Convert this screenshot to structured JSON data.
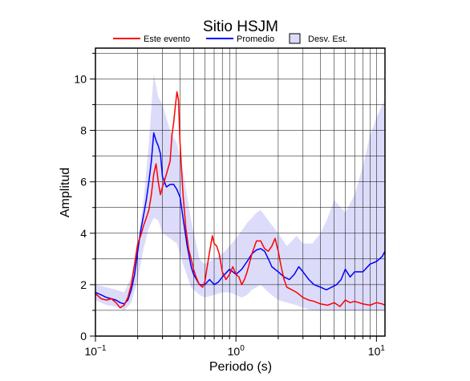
{
  "chart_data": {
    "type": "line",
    "title": "Sitio HSJM",
    "xlabel": "Periodo (s)",
    "ylabel": "Amplitud",
    "x_scale": "log",
    "xlim": [
      0.1,
      11.5
    ],
    "ylim": [
      0,
      11.2
    ],
    "y_ticks": [
      0,
      2,
      4,
      6,
      8,
      10
    ],
    "x_major_ticks": [
      {
        "value": 0.1,
        "base": "10",
        "exp": "−1"
      },
      {
        "value": 1,
        "base": "10",
        "exp": "0"
      },
      {
        "value": 10,
        "base": "10",
        "exp": "1"
      }
    ],
    "grid": true,
    "legend_position": "top",
    "legend": [
      {
        "label": "Este evento",
        "type": "line",
        "color": "#ff0000"
      },
      {
        "label": "Promedio",
        "type": "line",
        "color": "#0000ff"
      },
      {
        "label": "Desv. Est.",
        "type": "box",
        "color": "#dcdcfa"
      }
    ],
    "series": [
      {
        "name": "Este evento",
        "color": "#ff0000",
        "x": [
          0.1,
          0.11,
          0.12,
          0.13,
          0.14,
          0.15,
          0.16,
          0.17,
          0.18,
          0.19,
          0.2,
          0.21,
          0.22,
          0.23,
          0.24,
          0.25,
          0.26,
          0.27,
          0.28,
          0.29,
          0.3,
          0.32,
          0.34,
          0.35,
          0.36,
          0.37,
          0.38,
          0.39,
          0.4,
          0.42,
          0.44,
          0.46,
          0.48,
          0.5,
          0.52,
          0.55,
          0.58,
          0.6,
          0.62,
          0.65,
          0.68,
          0.7,
          0.73,
          0.76,
          0.8,
          0.85,
          0.9,
          0.95,
          1.0,
          1.05,
          1.1,
          1.15,
          1.2,
          1.3,
          1.4,
          1.5,
          1.6,
          1.7,
          1.8,
          1.9,
          2.0,
          2.1,
          2.2,
          2.3,
          2.5,
          2.7,
          3.0,
          3.3,
          3.6,
          4.0,
          4.5,
          5.0,
          5.5,
          6.0,
          6.5,
          7.0,
          8.0,
          9.0,
          10.0,
          11.0,
          11.5
        ],
        "y": [
          1.65,
          1.45,
          1.4,
          1.45,
          1.3,
          1.1,
          1.2,
          1.5,
          2.0,
          2.8,
          3.6,
          3.9,
          4.3,
          4.6,
          4.9,
          5.5,
          6.3,
          6.7,
          6.0,
          5.5,
          5.8,
          6.3,
          6.8,
          7.8,
          8.3,
          8.9,
          9.5,
          9.2,
          7.5,
          5.5,
          4.2,
          3.4,
          3.0,
          2.6,
          2.3,
          2.0,
          1.9,
          2.1,
          2.6,
          3.3,
          3.9,
          3.6,
          3.5,
          3.2,
          2.5,
          2.2,
          2.4,
          2.7,
          2.4,
          2.3,
          2.0,
          2.2,
          2.5,
          3.2,
          3.7,
          3.7,
          3.4,
          3.3,
          3.5,
          3.8,
          3.3,
          2.7,
          2.2,
          1.9,
          1.8,
          1.7,
          1.5,
          1.4,
          1.35,
          1.25,
          1.2,
          1.3,
          1.15,
          1.4,
          1.3,
          1.35,
          1.25,
          1.2,
          1.3,
          1.25,
          1.2
        ]
      },
      {
        "name": "Promedio",
        "color": "#0000ff",
        "x": [
          0.1,
          0.11,
          0.12,
          0.13,
          0.14,
          0.15,
          0.16,
          0.17,
          0.18,
          0.19,
          0.2,
          0.21,
          0.22,
          0.23,
          0.24,
          0.25,
          0.26,
          0.27,
          0.28,
          0.29,
          0.3,
          0.32,
          0.34,
          0.36,
          0.38,
          0.4,
          0.42,
          0.45,
          0.48,
          0.5,
          0.55,
          0.6,
          0.65,
          0.7,
          0.75,
          0.8,
          0.9,
          1.0,
          1.1,
          1.2,
          1.3,
          1.4,
          1.5,
          1.6,
          1.7,
          1.8,
          2.0,
          2.2,
          2.4,
          2.6,
          2.8,
          3.0,
          3.3,
          3.6,
          4.0,
          4.4,
          4.8,
          5.2,
          5.6,
          6.0,
          6.5,
          7.0,
          8.0,
          9.0,
          10.0,
          10.5,
          11.0,
          11.5
        ],
        "y": [
          1.7,
          1.6,
          1.5,
          1.45,
          1.4,
          1.3,
          1.25,
          1.4,
          1.8,
          2.4,
          3.3,
          4.1,
          4.7,
          5.3,
          6.0,
          6.8,
          7.9,
          7.6,
          7.4,
          7.1,
          6.2,
          5.8,
          5.9,
          5.9,
          5.7,
          5.4,
          4.6,
          3.5,
          2.7,
          2.4,
          2.0,
          2.0,
          2.2,
          2.0,
          2.1,
          2.3,
          2.6,
          2.4,
          2.6,
          2.9,
          3.2,
          3.35,
          3.4,
          3.3,
          3.0,
          2.7,
          2.5,
          2.3,
          2.2,
          2.4,
          2.7,
          2.5,
          2.2,
          2.0,
          1.9,
          1.8,
          1.9,
          2.0,
          2.2,
          2.6,
          2.3,
          2.5,
          2.5,
          2.8,
          2.9,
          3.0,
          3.1,
          3.3
        ]
      }
    ],
    "std_band": {
      "name": "Desv. Est.",
      "color": "#dcdcfa",
      "x": [
        0.1,
        0.12,
        0.14,
        0.16,
        0.18,
        0.2,
        0.22,
        0.24,
        0.26,
        0.28,
        0.3,
        0.34,
        0.38,
        0.42,
        0.48,
        0.55,
        0.6,
        0.7,
        0.8,
        0.9,
        1.0,
        1.1,
        1.2,
        1.3,
        1.4,
        1.5,
        1.7,
        2.0,
        2.3,
        2.7,
        3.0,
        3.5,
        4.0,
        4.5,
        5.0,
        6.0,
        7.0,
        8.0,
        9.0,
        10.0,
        11.5
      ],
      "upper": [
        2.0,
        1.9,
        1.8,
        1.7,
        2.3,
        3.6,
        5.3,
        7.5,
        10.2,
        9.3,
        9.0,
        8.0,
        7.5,
        6.4,
        4.5,
        3.0,
        2.8,
        3.0,
        3.2,
        3.5,
        3.8,
        4.1,
        4.4,
        4.6,
        4.8,
        4.9,
        4.5,
        4.0,
        3.5,
        3.9,
        3.6,
        3.6,
        4.0,
        4.6,
        5.3,
        4.8,
        5.5,
        6.6,
        7.8,
        8.5,
        9.2
      ],
      "lower": [
        1.4,
        1.2,
        1.15,
        1.0,
        1.3,
        2.2,
        3.4,
        4.2,
        4.6,
        4.5,
        4.0,
        3.8,
        3.6,
        2.8,
        1.9,
        1.6,
        1.5,
        1.6,
        1.7,
        1.7,
        1.6,
        1.5,
        1.6,
        1.8,
        1.9,
        2.0,
        1.7,
        1.4,
        1.3,
        1.2,
        1.1,
        1.0,
        1.0,
        1.0,
        1.0,
        1.0,
        1.0,
        1.0,
        1.0,
        1.0,
        1.0
      ]
    }
  }
}
